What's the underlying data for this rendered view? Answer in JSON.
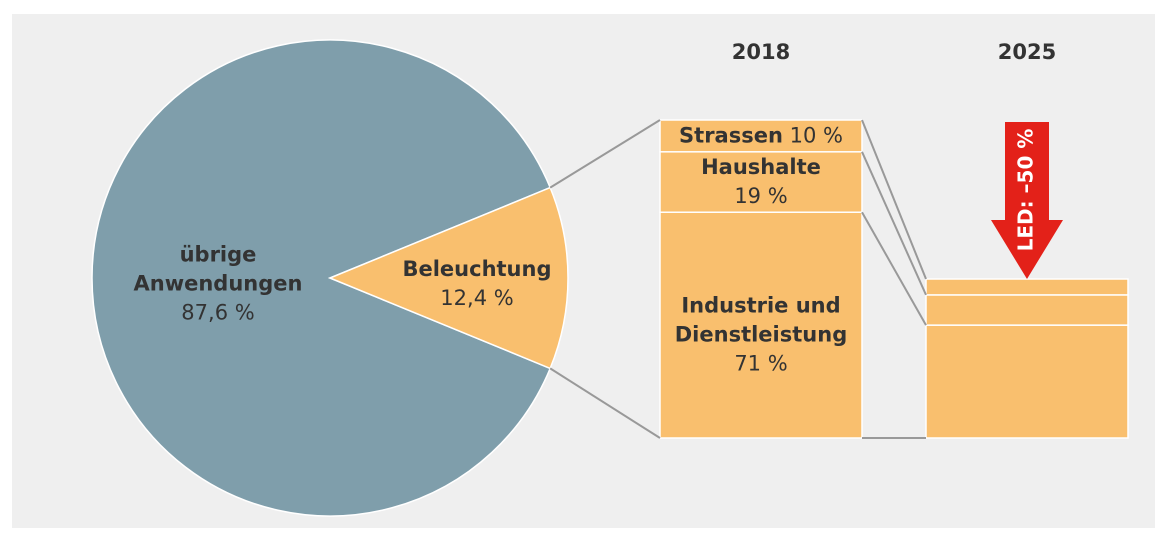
{
  "chart_data": [
    {
      "type": "pie",
      "categories": [
        "übrige Anwendungen",
        "Beleuchtung"
      ],
      "values": [
        87.6,
        12.4
      ],
      "value_labels": [
        "87,6 %",
        "12,4 %"
      ],
      "colors": [
        "#7f9eab",
        "#f9bf6e"
      ]
    },
    {
      "type": "stacked-bar",
      "categories": [
        "2018",
        "2025"
      ],
      "series": [
        {
          "name": "Industrie und Dienstleistung",
          "color": "#f9bf6e",
          "values": [
            71,
            35.5
          ],
          "value_labels": [
            "71 %",
            null
          ]
        },
        {
          "name": "Haushalte",
          "color": "#f9bf6e",
          "values": [
            19,
            9.5
          ],
          "value_labels": [
            "19 %",
            null
          ]
        },
        {
          "name": "Strassen",
          "color": "#f9bf6e",
          "values": [
            10,
            5
          ],
          "value_labels": [
            "10 %",
            null
          ]
        }
      ],
      "annotation": "LED: –50 %",
      "annotation_color": "#e32119"
    }
  ]
}
